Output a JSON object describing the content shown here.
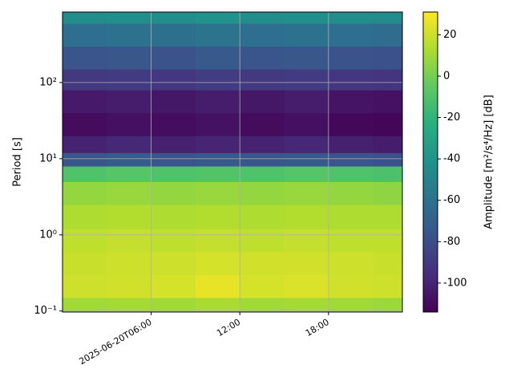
{
  "chart_data": {
    "type": "heatmap",
    "y_label": "Period [s]",
    "colorbar_label": "Amplitude [m²/s⁴/Hz] [dB]",
    "xbins": [
      "2025-06-20T00:00",
      "2025-06-20T03:00",
      "2025-06-20T06:00",
      "2025-06-20T09:00",
      "2025-06-20T12:00",
      "2025-06-20T15:00",
      "2025-06-20T18:00",
      "2025-06-20T21:00",
      "2025-06-20T23:00"
    ],
    "ybins": [
      0.097,
      0.15,
      0.3,
      0.6,
      1.2,
      2.5,
      5,
      8,
      12,
      20,
      40,
      80,
      150,
      300,
      600,
      843
    ],
    "values": [
      [
        10,
        11,
        10,
        12,
        10,
        11,
        10,
        9
      ],
      [
        20,
        21,
        22,
        26,
        22,
        23,
        21,
        20
      ],
      [
        19,
        20,
        20,
        22,
        21,
        21,
        20,
        19
      ],
      [
        17,
        18,
        17,
        18,
        17,
        18,
        17,
        17
      ],
      [
        13,
        14,
        13,
        14,
        13,
        14,
        13,
        13
      ],
      [
        7,
        8,
        7,
        8,
        7,
        8,
        7,
        6
      ],
      [
        -10,
        -8,
        -10,
        -9,
        -10,
        -8,
        -10,
        -11
      ],
      [
        -75,
        -72,
        -76,
        -74,
        -75,
        -73,
        -76,
        -78
      ],
      [
        -100,
        -98,
        -101,
        -99,
        -100,
        -98,
        -101,
        -103
      ],
      [
        -110,
        -108,
        -109,
        -107,
        -110,
        -108,
        -111,
        -112
      ],
      [
        -104,
        -103,
        -105,
        -103,
        -105,
        -103,
        -106,
        -107
      ],
      [
        -90,
        -89,
        -91,
        -88,
        -90,
        -89,
        -91,
        -92
      ],
      [
        -76,
        -75,
        -77,
        -74,
        -76,
        -75,
        -77,
        -78
      ],
      [
        -62,
        -60,
        -61,
        -59,
        -62,
        -60,
        -62,
        -63
      ],
      [
        -44,
        -42,
        -43,
        -41,
        -44,
        -42,
        -44,
        -45
      ]
    ],
    "xlim": [
      "2025-06-20T00:00",
      "2025-06-20T23:00"
    ],
    "xticks": [
      "2025-06-20T06:00",
      {
        "value": "2025-06-20T12:00",
        "label": "12:00"
      },
      {
        "value": "2025-06-20T18:00",
        "label": "18:00"
      }
    ],
    "ylim": [
      0.097,
      843
    ],
    "yscale": "log",
    "yticks": [
      {
        "value": 0.1,
        "label": "10⁻¹"
      },
      {
        "value": 1,
        "label": "10⁰"
      },
      {
        "value": 10,
        "label": "10¹"
      },
      {
        "value": 100,
        "label": "10²"
      }
    ],
    "clim": [
      -114,
      31
    ],
    "cticks": [
      -100,
      -80,
      -60,
      -40,
      -20,
      0,
      20
    ],
    "colormap": "viridis",
    "grid": true
  }
}
